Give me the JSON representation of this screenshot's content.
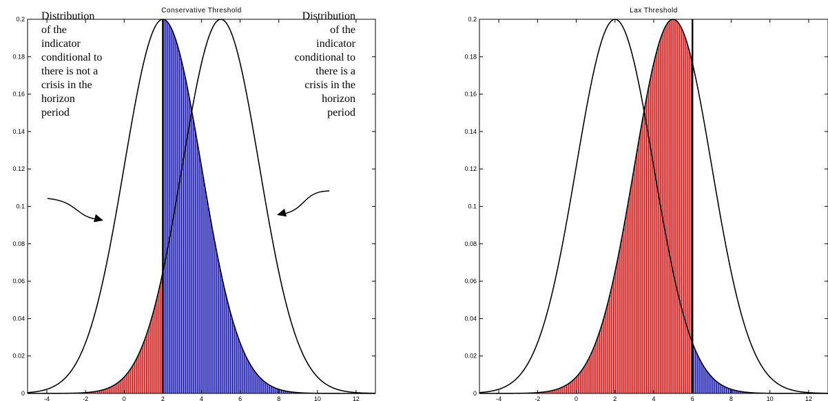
{
  "chart_data": [
    {
      "type": "area",
      "title": "Conservative Threshold",
      "xlabel": "",
      "ylabel": "",
      "xlim": [
        -5,
        13
      ],
      "ylim": [
        0,
        0.2
      ],
      "xticks": [
        -4,
        -2,
        0,
        2,
        4,
        6,
        8,
        10,
        12
      ],
      "yticks": [
        0,
        0.02,
        0.04,
        0.06,
        0.08,
        0.1,
        0.12,
        0.14,
        0.16,
        0.18,
        0.2
      ],
      "threshold": 2,
      "series": [
        {
          "kind": "normal-curve",
          "mean": 2,
          "std": 2,
          "peak": 0.2
        },
        {
          "kind": "normal-curve",
          "mean": 5,
          "std": 2,
          "peak": 0.2
        }
      ],
      "shaded": [
        {
          "curve": "mean 5",
          "side": "left-of-threshold",
          "color": "#cc0000"
        },
        {
          "curve": "mean 2",
          "side": "right-of-threshold",
          "color": "#0000aa"
        }
      ],
      "annotations": {
        "left": [
          "Distribution",
          "of the",
          "indicator",
          "conditional to",
          "there is not a",
          "crisis in the",
          "horizon",
          "period"
        ],
        "right": [
          "Distribution",
          "of the",
          "indicator",
          "conditional to",
          "there is a",
          "crisis in the",
          "horizon",
          "period"
        ]
      },
      "grid": false
    },
    {
      "type": "area",
      "title": "Lax Threshold",
      "xlabel": "",
      "ylabel": "",
      "xlim": [
        -5,
        13
      ],
      "ylim": [
        0,
        0.2
      ],
      "xticks": [
        -4,
        -2,
        0,
        2,
        4,
        6,
        8,
        10,
        12
      ],
      "yticks": [
        0,
        0.02,
        0.04,
        0.06,
        0.08,
        0.1,
        0.12,
        0.14,
        0.16,
        0.18,
        0.2
      ],
      "threshold": 6,
      "series": [
        {
          "kind": "normal-curve",
          "mean": 2,
          "std": 2,
          "peak": 0.2
        },
        {
          "kind": "normal-curve",
          "mean": 5,
          "std": 2,
          "peak": 0.2
        }
      ],
      "shaded": [
        {
          "curve": "mean 5",
          "side": "left-of-threshold",
          "color": "#cc0000"
        },
        {
          "curve": "mean 2",
          "side": "right-of-threshold",
          "color": "#0000aa"
        }
      ],
      "grid": false
    }
  ]
}
